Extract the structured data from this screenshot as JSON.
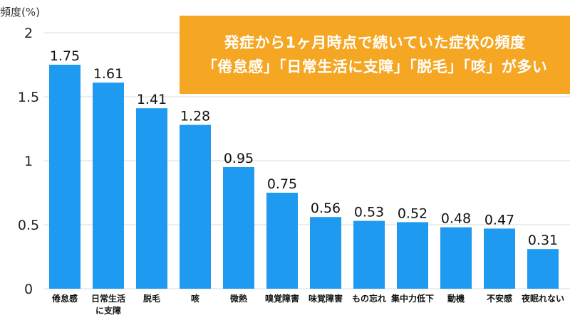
{
  "chart_data": {
    "type": "bar",
    "ylabel": "頻度(%)",
    "ylim": [
      0,
      2
    ],
    "yticks": [
      "0",
      "0.5",
      "1",
      "1.5",
      "2"
    ],
    "grid": true,
    "bar_color": "#1e9bf0",
    "categories": [
      [
        "倦怠感"
      ],
      [
        "日常生活",
        "に支障"
      ],
      [
        "脱毛"
      ],
      [
        "咳"
      ],
      [
        "微熱"
      ],
      [
        "嗅覚障害"
      ],
      [
        "味覚障害"
      ],
      [
        "もの忘れ"
      ],
      [
        "集中力低下"
      ],
      [
        "動機"
      ],
      [
        "不安感"
      ],
      [
        "夜眠れない"
      ]
    ],
    "values": [
      1.75,
      1.61,
      1.41,
      1.28,
      0.95,
      0.75,
      0.56,
      0.53,
      0.52,
      0.48,
      0.47,
      0.31
    ],
    "labels": [
      "1.75",
      "1.61",
      "1.41",
      "1.28",
      "0.95",
      "0.75",
      "0.56",
      "0.53",
      "0.52",
      "0.48",
      "0.47",
      "0.31"
    ]
  },
  "banner": {
    "line1": "発症から1ヶ月時点で続いていた症状の頻度",
    "line2": "「倦怠感」「日常生活に支障」「脱毛」「咳」が多い",
    "color": "#f5a623"
  }
}
